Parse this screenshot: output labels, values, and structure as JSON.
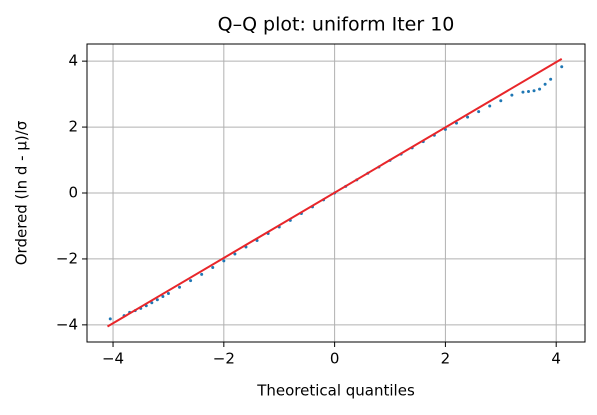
{
  "chart_data": {
    "type": "scatter",
    "title": "Q–Q plot: uniform Iter 10",
    "xlabel": "Theoretical quantiles",
    "ylabel": "Ordered (ln d - μ)/σ",
    "xlim": [
      -4.47,
      4.52
    ],
    "ylim": [
      -4.52,
      4.52
    ],
    "xticks": [
      {
        "value": -4,
        "label": "−4"
      },
      {
        "value": -2,
        "label": "−2"
      },
      0,
      2,
      4
    ],
    "yticks": [
      {
        "value": -4,
        "label": "−4"
      },
      {
        "value": -2,
        "label": "−2"
      },
      0,
      2,
      4
    ],
    "grid": true,
    "series": [
      {
        "type": "scatter",
        "color": "#1f77b4",
        "x": [
          -4.05,
          -3.8,
          -3.7,
          -3.6,
          -3.5,
          -3.4,
          -3.3,
          -3.2,
          -3.1,
          -3.0,
          -2.8,
          -2.6,
          -2.4,
          -2.2,
          -2.0,
          -1.8,
          -1.6,
          -1.4,
          -1.2,
          -1.0,
          -0.8,
          -0.6,
          -0.4,
          -0.2,
          0,
          0.2,
          0.4,
          0.6,
          0.8,
          1.0,
          1.2,
          1.4,
          1.6,
          1.8,
          2.0,
          2.2,
          2.4,
          2.6,
          2.8,
          3.0,
          3.2,
          3.4,
          3.5,
          3.6,
          3.7,
          3.8,
          3.9,
          4.1
        ],
        "values": [
          -3.82,
          -3.72,
          -3.62,
          -3.57,
          -3.5,
          -3.42,
          -3.33,
          -3.24,
          -3.14,
          -3.05,
          -2.86,
          -2.66,
          -2.47,
          -2.26,
          -2.06,
          -1.85,
          -1.64,
          -1.44,
          -1.23,
          -1.03,
          -0.83,
          -0.62,
          -0.42,
          -0.21,
          0.0,
          0.2,
          0.4,
          0.6,
          0.79,
          0.99,
          1.18,
          1.37,
          1.56,
          1.75,
          1.93,
          2.12,
          2.3,
          2.47,
          2.64,
          2.8,
          2.97,
          3.06,
          3.08,
          3.1,
          3.15,
          3.3,
          3.45,
          3.83
        ]
      },
      {
        "type": "line",
        "color": "#e8262a",
        "x": [
          -4.1,
          4.1
        ],
        "values": [
          -4.05,
          4.07
        ]
      }
    ]
  }
}
